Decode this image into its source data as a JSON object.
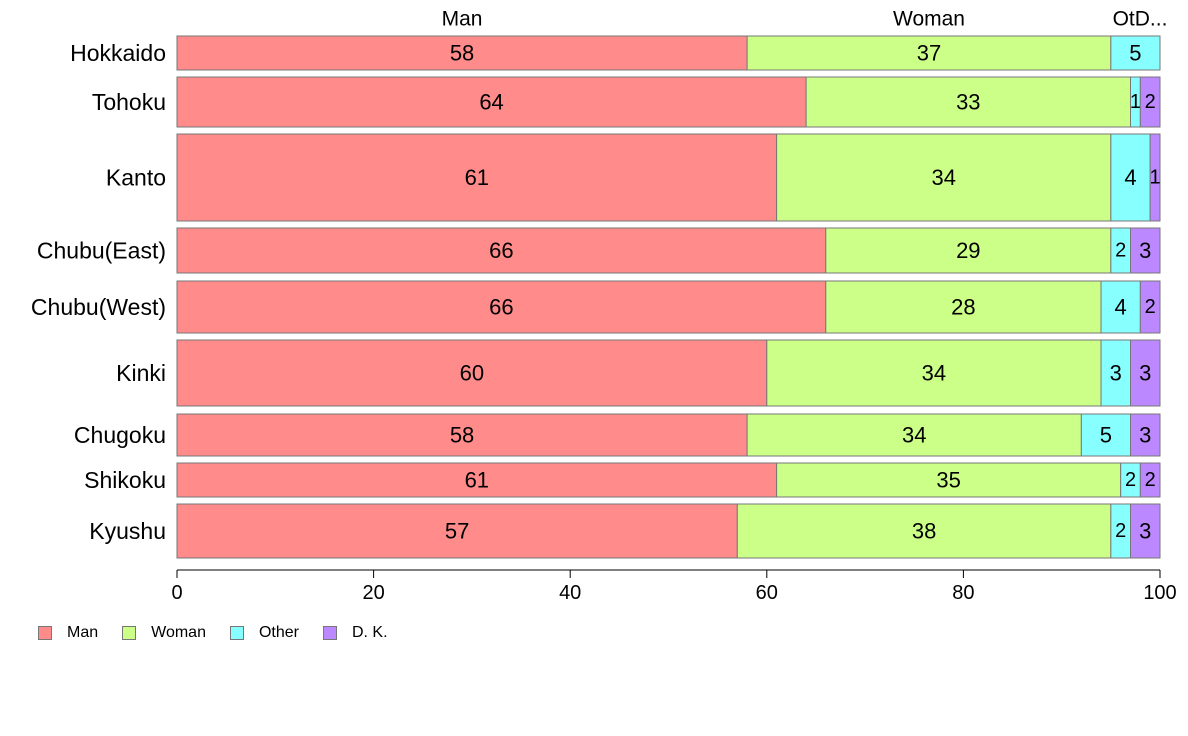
{
  "chart_data": {
    "type": "bar",
    "orientation": "horizontal",
    "stacked": true,
    "variable_width": true,
    "categories": [
      "Hokkaido",
      "Tohoku",
      "Kanto",
      "Chubu(East)",
      "Chubu(West)",
      "Kinki",
      "Chugoku",
      "Shikoku",
      "Kyushu"
    ],
    "series": [
      {
        "name": "Man",
        "color": "#FF8B8B",
        "values": [
          58,
          64,
          61,
          66,
          66,
          60,
          58,
          61,
          57
        ]
      },
      {
        "name": "Woman",
        "color": "#CCFF88",
        "values": [
          37,
          33,
          34,
          29,
          28,
          34,
          34,
          35,
          38
        ]
      },
      {
        "name": "Other",
        "color": "#88FFFF",
        "values": [
          5,
          1,
          4,
          2,
          4,
          3,
          5,
          2,
          2
        ]
      },
      {
        "name": "D. K.",
        "color": "#BB88FF",
        "values": [
          0,
          2,
          1,
          3,
          2,
          3,
          3,
          2,
          3
        ]
      }
    ],
    "top_labels": [
      "Man",
      "Woman",
      "OtD..."
    ],
    "xlim": [
      0,
      100
    ],
    "x_ticks": [
      0,
      20,
      40,
      60,
      80,
      100
    ],
    "grid": false,
    "legend_position": "bottom-left"
  }
}
